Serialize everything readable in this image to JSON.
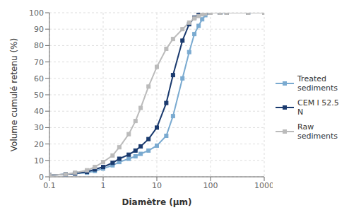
{
  "chart_data": {
    "type": "line",
    "xlabel": "Diamètre (μm)",
    "ylabel": "Volume cumulé retenu (%)",
    "log": "x",
    "grid": true,
    "legend": "right",
    "xlim": [
      0.1,
      1000
    ],
    "xticks": [
      0.1,
      1,
      10,
      100,
      1000
    ],
    "ylim": [
      0,
      100
    ],
    "yticks": [
      0,
      10,
      20,
      30,
      40,
      50,
      60,
      70,
      80,
      90,
      100
    ],
    "x": [
      0.1,
      0.2,
      0.3,
      0.5,
      0.7,
      1.0,
      1.5,
      2.0,
      3.0,
      4.0,
      5.0,
      7.0,
      10.0,
      15.0,
      20.0,
      30.0,
      40.0,
      50.0,
      60.0,
      70.0,
      80.0,
      100.0,
      150.0,
      200.0,
      500.0,
      1000.0
    ],
    "series": [
      {
        "name": "Treated\nsediments",
        "color": "#7aaad0",
        "marker": "square",
        "values": [
          1.0,
          1.5,
          2.0,
          2.5,
          3.5,
          5.0,
          7.0,
          9.0,
          11.0,
          12.5,
          14.0,
          16.0,
          19.0,
          25.0,
          37.0,
          60.0,
          76.0,
          87.0,
          92.0,
          96.0,
          98.5,
          100.0,
          100.0,
          100.0,
          100.0,
          100.0
        ]
      },
      {
        "name": "CEM I 52.5 N",
        "color": "#1a3a6e",
        "marker": "square",
        "values": [
          1.0,
          1.5,
          2.0,
          3.0,
          4.5,
          6.0,
          8.5,
          11.0,
          13.5,
          16.0,
          18.5,
          23.0,
          30.0,
          45.0,
          62.0,
          83.0,
          93.0,
          97.0,
          99.0,
          100.0,
          100.0,
          100.0,
          100.0,
          100.0,
          100.0,
          100.0
        ]
      },
      {
        "name": "Raw\nsediments",
        "color": "#BBBBBB",
        "marker": "square",
        "values": [
          1.0,
          1.5,
          2.5,
          4.0,
          6.0,
          9.0,
          13.0,
          18.0,
          26.0,
          34.0,
          42.0,
          55.0,
          67.0,
          78.0,
          84.0,
          90.0,
          94.0,
          96.5,
          98.0,
          99.0,
          99.5,
          100.0,
          100.0,
          100.0,
          100.0,
          100.0
        ]
      }
    ]
  }
}
